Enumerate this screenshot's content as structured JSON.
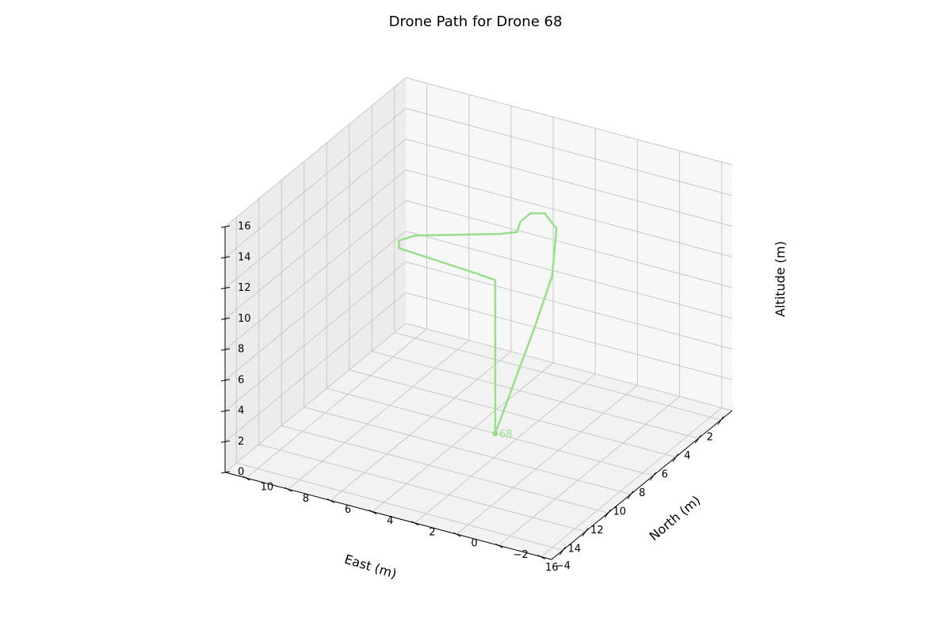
{
  "chart_data": {
    "type": "line3d",
    "title": "Drone Path for Drone 68",
    "xlabel": "East (m)",
    "ylabel": "North (m)",
    "zlabel": "Altitude (m)",
    "xlim": [
      1,
      17
    ],
    "ylim": [
      -4.5,
      11
    ],
    "zlim": [
      0,
      16
    ],
    "xticks": [
      2,
      4,
      6,
      8,
      10,
      12,
      14,
      16
    ],
    "yticks": [
      -4,
      -2,
      0,
      2,
      4,
      6,
      8,
      10
    ],
    "zticks": [
      0,
      2,
      4,
      6,
      8,
      10,
      12,
      14,
      16
    ],
    "grid": true,
    "series": [
      {
        "name": "68",
        "color": "#98df8a",
        "path": [
          [
            8,
            3,
            0
          ],
          [
            8,
            3,
            10
          ],
          [
            8.5,
            3.7,
            10.5
          ],
          [
            9.5,
            5.5,
            11.5
          ],
          [
            10,
            6.5,
            12
          ],
          [
            10,
            6.5,
            12.5
          ],
          [
            9.5,
            6,
            12.7
          ],
          [
            8.5,
            4.5,
            12.7
          ],
          [
            7.5,
            3,
            12.7
          ],
          [
            7,
            2.5,
            12.7
          ],
          [
            6.7,
            2.5,
            13.2
          ],
          [
            6.2,
            2.3,
            13.5
          ],
          [
            5.5,
            2,
            13.2
          ],
          [
            5,
            1.7,
            12
          ],
          [
            5.2,
            1.8,
            9
          ],
          [
            6,
            2.2,
            6
          ],
          [
            7,
            2.6,
            3
          ],
          [
            8,
            3,
            0
          ]
        ],
        "label": "68",
        "label_point": [
          8,
          3,
          0
        ]
      }
    ]
  }
}
